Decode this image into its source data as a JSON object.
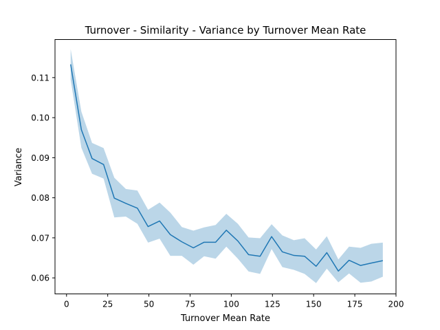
{
  "chart_data": {
    "type": "line",
    "title": "Turnover - Similarity - Variance by Turnover Mean Rate",
    "xlabel": "Turnover Mean Rate",
    "ylabel": "Variance",
    "xlim": [
      -7,
      200
    ],
    "ylim": [
      0.056,
      0.1195
    ],
    "grid": false,
    "x_ticks": [
      0,
      25,
      50,
      75,
      100,
      125,
      150,
      175,
      200
    ],
    "x_tick_labels": [
      "0",
      "25",
      "50",
      "75",
      "100",
      "125",
      "150",
      "175",
      "200"
    ],
    "y_ticks": [
      0.06,
      0.07,
      0.08,
      0.09,
      0.1,
      0.11
    ],
    "y_tick_labels": [
      "0.06",
      "0.07",
      "0.08",
      "0.09",
      "0.10",
      "0.11"
    ],
    "colors": {
      "line": "#1f77b4",
      "band": "#1f77b4"
    },
    "series": [
      {
        "x": [
          2.5,
          9,
          15.5,
          22.5,
          29,
          36,
          43,
          49.5,
          56.5,
          63,
          70,
          77,
          83.5,
          90.5,
          97,
          104,
          110.5,
          117.5,
          124.5,
          131,
          138,
          144.5,
          151.5,
          158,
          165,
          171.5,
          178.5,
          185,
          192
        ],
        "values": [
          0.1133,
          0.097,
          0.0898,
          0.0883,
          0.0799,
          0.0786,
          0.0774,
          0.0728,
          0.0742,
          0.0708,
          0.069,
          0.0675,
          0.0689,
          0.0689,
          0.0719,
          0.0692,
          0.0658,
          0.0654,
          0.0703,
          0.0665,
          0.0656,
          0.0654,
          0.0629,
          0.0663,
          0.0617,
          0.0644,
          0.0631,
          0.0637,
          0.0643
        ],
        "lower": [
          0.1095,
          0.0925,
          0.086,
          0.0848,
          0.0751,
          0.0753,
          0.0735,
          0.0688,
          0.0698,
          0.0655,
          0.0655,
          0.0633,
          0.0654,
          0.0648,
          0.0678,
          0.0648,
          0.0616,
          0.061,
          0.0672,
          0.0627,
          0.062,
          0.061,
          0.0587,
          0.0623,
          0.0589,
          0.0611,
          0.0588,
          0.0591,
          0.0603
        ],
        "upper": [
          0.1171,
          0.1015,
          0.0937,
          0.0924,
          0.085,
          0.0822,
          0.0818,
          0.077,
          0.0788,
          0.0763,
          0.0727,
          0.0718,
          0.0726,
          0.0732,
          0.076,
          0.0735,
          0.0701,
          0.0699,
          0.0734,
          0.0706,
          0.0694,
          0.0699,
          0.0671,
          0.0704,
          0.0646,
          0.0678,
          0.0675,
          0.0685,
          0.0688
        ]
      }
    ]
  }
}
